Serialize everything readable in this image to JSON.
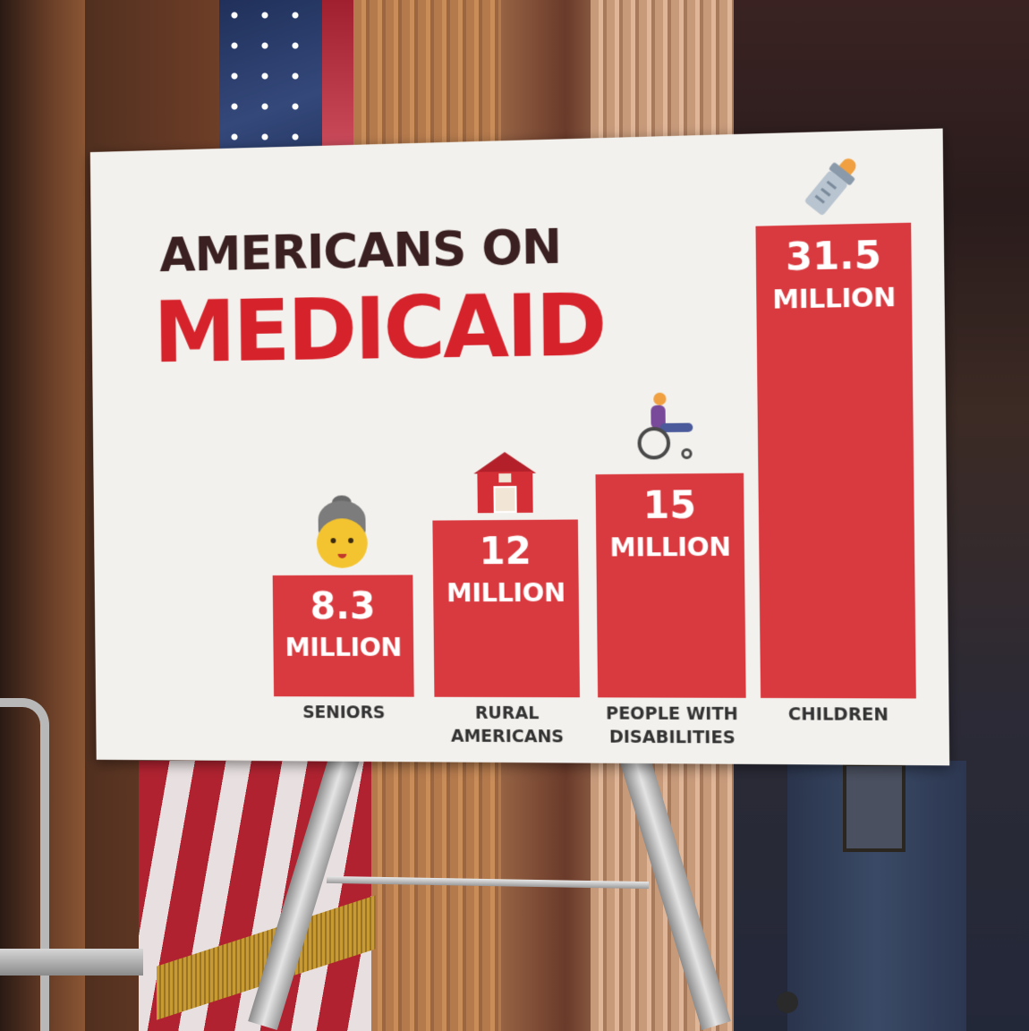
{
  "poster": {
    "title_line1": "AMERICANS ON",
    "title_line2": "MEDICAID"
  },
  "chart_data": {
    "type": "bar",
    "title": "AMERICANS ON MEDICAID",
    "categories": [
      "SENIORS",
      "RURAL\nAMERICANS",
      "PEOPLE WITH\nDISABILITIES",
      "CHILDREN"
    ],
    "values": [
      8.3,
      12,
      15,
      31.5
    ],
    "value_labels": [
      "8.3",
      "12",
      "15",
      "31.5"
    ],
    "unit_label": "MILLION",
    "bar_color": "#d93a3f",
    "ylim": [
      0,
      31.5
    ],
    "icons": [
      "senior-woman-icon",
      "barn-icon",
      "wheelchair-user-icon",
      "baby-bottle-icon"
    ],
    "grid": false
  },
  "colors": {
    "title_dark": "#3a2020",
    "title_red": "#d6222b",
    "poster_background": "#f3f1ed"
  }
}
